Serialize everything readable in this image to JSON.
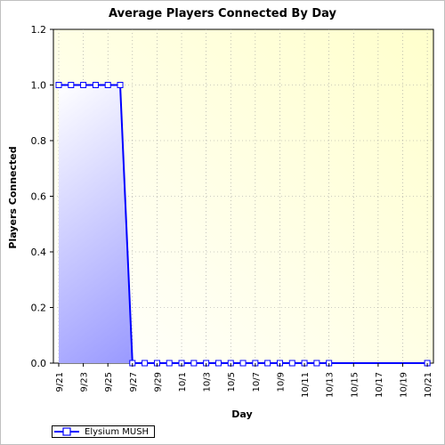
{
  "chart_data": {
    "type": "area",
    "title": "Average Players Connected By Day",
    "xlabel": "Day",
    "ylabel": "Players Connected",
    "ylim": [
      0,
      1.2
    ],
    "yticks": [
      "0.0",
      "0.2",
      "0.4",
      "0.6",
      "0.8",
      "1.0",
      "1.2"
    ],
    "xticks": [
      "9/21",
      "9/23",
      "9/25",
      "9/27",
      "9/29",
      "10/1",
      "10/3",
      "10/5",
      "10/7",
      "10/9",
      "10/11",
      "10/13",
      "10/15",
      "10/17",
      "10/19",
      "10/21"
    ],
    "grid": true,
    "legend_position": "bottom-left",
    "series": [
      {
        "name": "Elysium MUSH",
        "color": "#0000ff",
        "x": [
          "9/21",
          "9/22",
          "9/23",
          "9/24",
          "9/25",
          "9/26",
          "9/27",
          "9/28",
          "9/29",
          "9/30",
          "10/1",
          "10/2",
          "10/3",
          "10/4",
          "10/5",
          "10/6",
          "10/7",
          "10/8",
          "10/9",
          "10/10",
          "10/11",
          "10/12",
          "10/13",
          "10/21"
        ],
        "values": [
          1,
          1,
          1,
          1,
          1,
          1,
          0,
          0,
          0,
          0,
          0,
          0,
          0,
          0,
          0,
          0,
          0,
          0,
          0,
          0,
          0,
          0,
          0,
          0
        ]
      }
    ]
  }
}
